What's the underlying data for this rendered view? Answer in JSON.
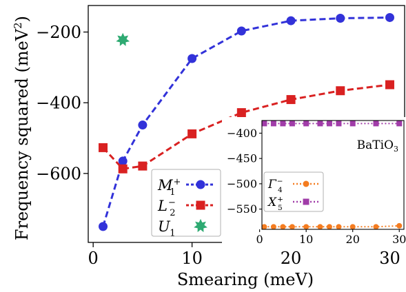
{
  "chart_data": [
    {
      "type": "line",
      "xlabel": "Smearing (meV)",
      "ylabel": "Frequency squared (meV²)",
      "ylabel_parts": {
        "main": "Frequency squared (meV",
        "sup": "2",
        "close": ")"
      },
      "xlim": [
        -0.5,
        31.5
      ],
      "ylim": [
        -795,
        -125
      ],
      "xticks": [
        0,
        10,
        20,
        30
      ],
      "yticks": [
        -600,
        -400,
        -200
      ],
      "series": [
        {
          "name": "M1+",
          "label": {
            "base": "M",
            "sub": "1",
            "sup": "+"
          },
          "color": "#3232d9",
          "marker": "circle",
          "linestyle": "dashed",
          "x": [
            1,
            3,
            5,
            10,
            15,
            20,
            25,
            30
          ],
          "y": [
            -750,
            -565,
            -463,
            -275,
            -197,
            -168,
            -161,
            -159
          ]
        },
        {
          "name": "L2-",
          "label": {
            "base": "L",
            "sub": "2",
            "sup": "−"
          },
          "color": "#d92121",
          "marker": "square",
          "linestyle": "dashed",
          "x": [
            1,
            3,
            5,
            10,
            15,
            20,
            25,
            30
          ],
          "y": [
            -527,
            -587,
            -579,
            -488,
            -428,
            -391,
            -366,
            -349
          ]
        },
        {
          "name": "U1",
          "label": {
            "base": "U",
            "sub": "1",
            "sup": ""
          },
          "color": "#2eaa72",
          "marker": "star",
          "linestyle": "none",
          "x": [
            3
          ],
          "y": [
            -222
          ]
        }
      ],
      "legend": {
        "placement": "lower-center"
      }
    },
    {
      "type": "line",
      "title": "BaTiO",
      "title_sub": "3",
      "xlim": [
        0.5,
        31
      ],
      "ylim": [
        -590,
        -375
      ],
      "xticks": [
        0,
        10,
        20,
        30
      ],
      "yticks": [
        -550,
        -500,
        -450,
        -400
      ],
      "series": [
        {
          "name": "Γ4-",
          "label": {
            "base": "Γ",
            "sub": "4",
            "sup": "−"
          },
          "color": "#f47c20",
          "marker": "circle",
          "linestyle": "dotted",
          "x": [
            1,
            3,
            5,
            7,
            10,
            13,
            15,
            17,
            20,
            25,
            30
          ],
          "y": [
            -585,
            -585,
            -585,
            -585,
            -585,
            -585,
            -585,
            -585,
            -585,
            -585,
            -583
          ]
        },
        {
          "name": "X5+",
          "label": {
            "base": "X",
            "sub": "5",
            "sup": "+"
          },
          "color": "#a03ca8",
          "marker": "square",
          "linestyle": "dotted",
          "x": [
            1,
            3,
            5,
            7,
            10,
            13,
            15,
            17,
            20,
            25,
            30
          ],
          "y": [
            -381,
            -381,
            -381,
            -381,
            -381,
            -381,
            -381,
            -381,
            -381,
            -381,
            -381
          ]
        }
      ],
      "legend": {
        "placement": "lower-left"
      }
    }
  ]
}
